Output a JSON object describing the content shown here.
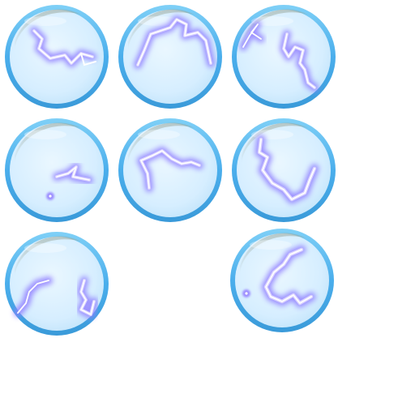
{
  "sprite_sheet": {
    "background": "#ffffff",
    "orb_colors": {
      "rim": "#46a9ea",
      "rim_light": "#7ccaf5",
      "fill": "#d8efff",
      "fill_center": "#e8f6ff",
      "highlight": "#ffffff",
      "shadow": "#2f8fcf"
    },
    "lightning_colors": {
      "glow": "#9b8cff",
      "core": "#ffffff",
      "mid": "#c9c0ff"
    },
    "frames": [
      {
        "id": "frame-1",
        "icon": "lightning-orb-icon",
        "empty": false
      },
      {
        "id": "frame-2",
        "icon": "lightning-orb-icon",
        "empty": false
      },
      {
        "id": "frame-3",
        "icon": "lightning-orb-icon",
        "empty": false
      },
      {
        "id": "frame-4",
        "icon": "lightning-orb-icon",
        "empty": false
      },
      {
        "id": "frame-5",
        "icon": "lightning-orb-icon",
        "empty": false
      },
      {
        "id": "frame-6",
        "icon": "lightning-orb-icon",
        "empty": false
      },
      {
        "id": "frame-7",
        "icon": "lightning-orb-icon",
        "empty": false
      },
      {
        "id": "frame-8",
        "icon": "empty-slot",
        "empty": true
      },
      {
        "id": "frame-9",
        "icon": "lightning-orb-icon",
        "empty": false
      }
    ]
  }
}
